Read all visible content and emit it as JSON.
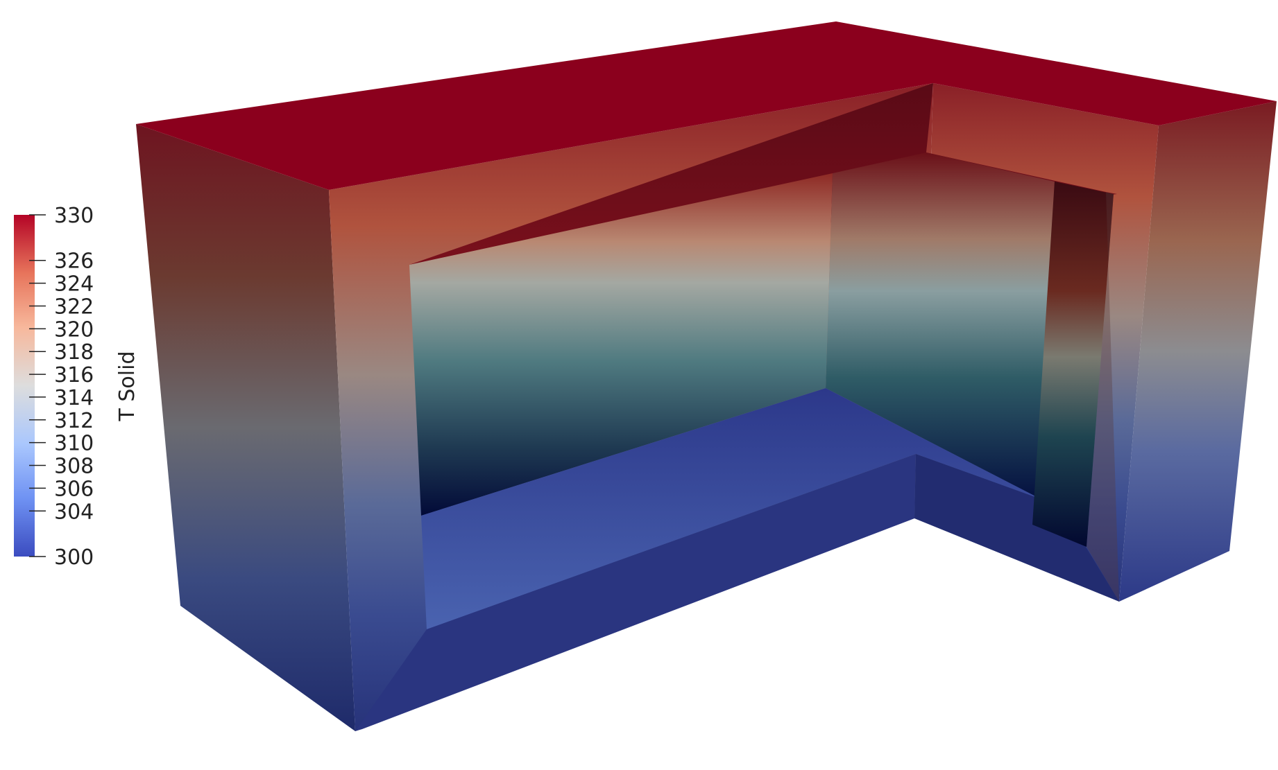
{
  "scalar_bar": {
    "title": "T Solid",
    "min": 300,
    "max": 330,
    "tick_labels": [
      "330",
      "326",
      "324",
      "322",
      "320",
      "318",
      "316",
      "314",
      "312",
      "310",
      "308",
      "306",
      "304",
      "300"
    ],
    "colormap": [
      "#3b4cc0",
      "#6f92f3",
      "#aac7fd",
      "#dddddd",
      "#f7b89c",
      "#e7745b",
      "#b40426"
    ]
  }
}
